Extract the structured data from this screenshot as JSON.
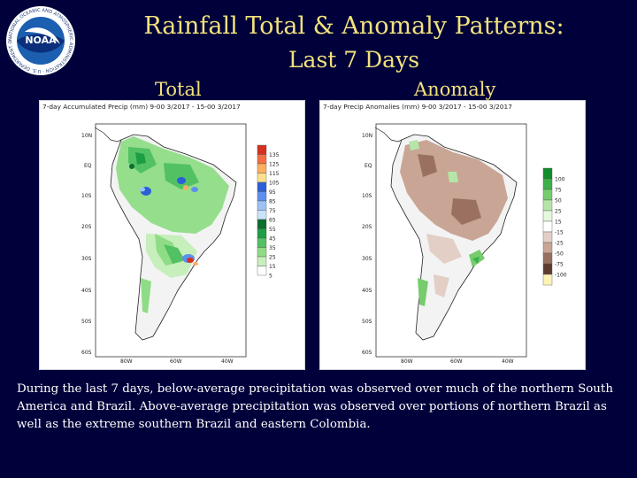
{
  "header": {
    "title": "Rainfall Total & Anomaly Patterns:",
    "subtitle": "Last 7 Days",
    "logo_text": "NOAA",
    "logo_ring_text": "NATIONAL OCEANIC AND ATMOSPHERIC ADMINISTRATION · U.S. DEPARTMENT OF COMMERCE"
  },
  "panels": {
    "total": {
      "label": "Total",
      "map_title": "7-day Accumulated Precip (mm) 9-00 3/2017 - 15-00 3/2017",
      "lat_labels": [
        "10N",
        "EQ",
        "10S",
        "20S",
        "30S",
        "40S",
        "50S",
        "60S"
      ],
      "lon_labels": [
        "80W",
        "60W",
        "40W"
      ],
      "legend_labels": [
        "135",
        "125",
        "115",
        "105",
        "95",
        "85",
        "75",
        "65",
        "55",
        "45",
        "35",
        "25",
        "15",
        "5"
      ],
      "legend_colors": [
        "#d7301f",
        "#f46d43",
        "#fdae61",
        "#fee08b",
        "#2b5fd9",
        "#5b8ff0",
        "#9cc3f5",
        "#c9e3fb",
        "#0a6e2f",
        "#1e9e44",
        "#52c163",
        "#8fdc86",
        "#c6efbb",
        "#ffffff"
      ]
    },
    "anomaly": {
      "label": "Anomaly",
      "map_title": "7-day Precip Anomalies (mm) 9-00 3/2017 - 15-00 3/2017",
      "lat_labels": [
        "10N",
        "EQ",
        "10S",
        "20S",
        "30S",
        "40S",
        "50S",
        "60S"
      ],
      "lon_labels": [
        "80W",
        "60W",
        "40W"
      ],
      "legend_labels": [
        "100",
        "75",
        "50",
        "25",
        "15",
        "-15",
        "-25",
        "-50",
        "-75",
        "-100"
      ],
      "legend_colors": [
        "#118d2a",
        "#3cb04a",
        "#76cc6d",
        "#b5e6a8",
        "#e5f7dd",
        "#ffffff",
        "#e3cfc6",
        "#c9a596",
        "#9a7161",
        "#5e3d30",
        "#fdf3b4"
      ]
    }
  },
  "caption": "During the last 7 days, below-average precipitation was observed over much of the northern South America and Brazil. Above-average precipitation was observed over portions of northern Brazil as well as the extreme southern Brazil and eastern Colombia."
}
